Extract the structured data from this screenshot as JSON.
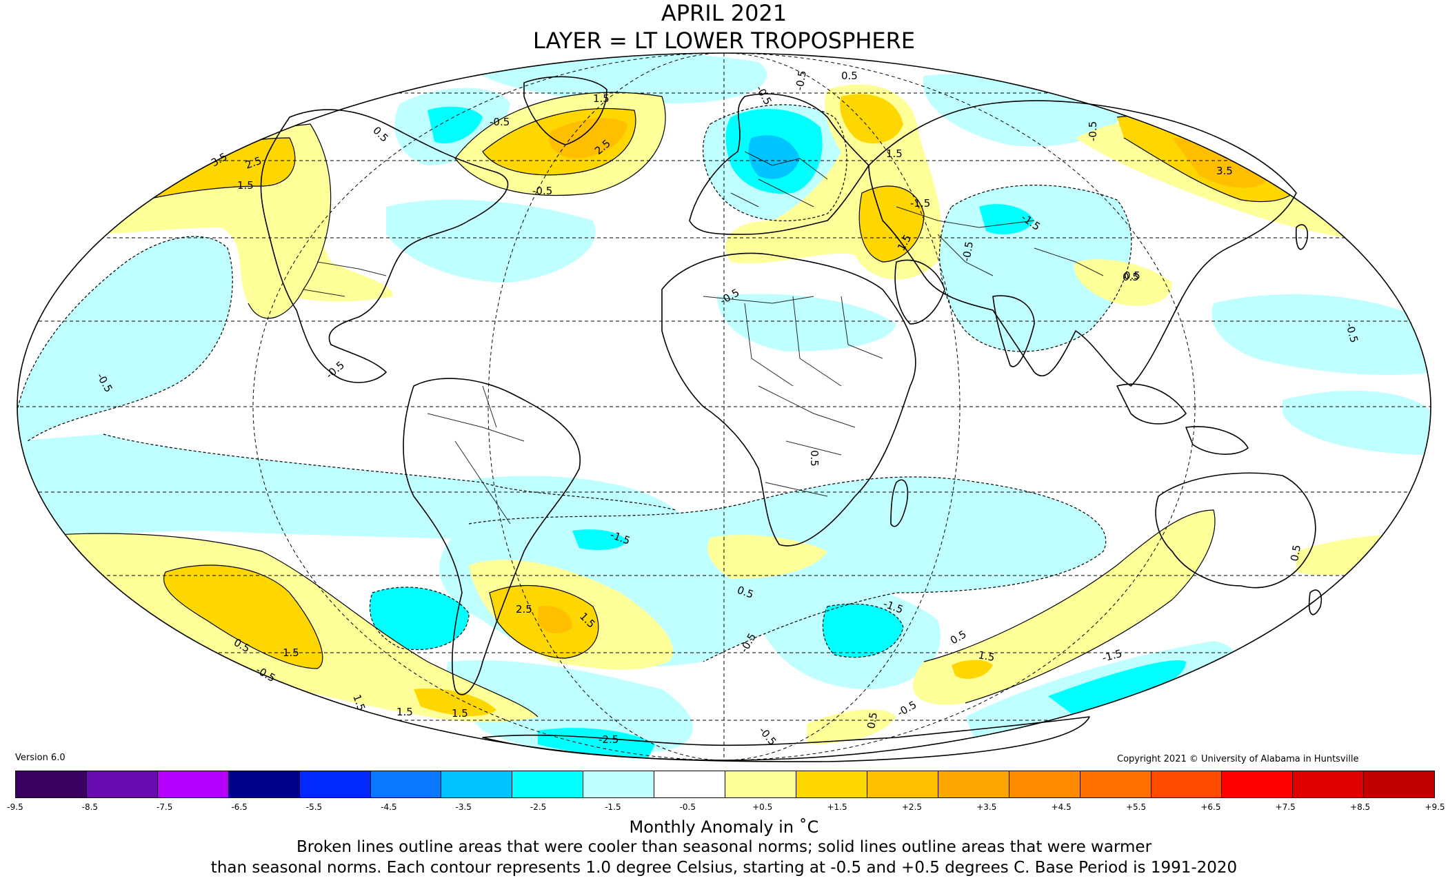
{
  "header": {
    "title_line1": "APRIL 2021",
    "title_line2": "LAYER = LT LOWER TROPOSPHERE"
  },
  "footer": {
    "version": "Version 6.0",
    "copyright": "Copyright 2021 © University of Alabama in Huntsville",
    "colorbar_label": "Monthly Anomaly in ˚C",
    "description_line1": "Broken lines outline areas that were cooler than seasonal norms; solid lines outline areas that were warmer",
    "description_line2": "than seasonal norms. Each contour represents 1.0 degree Celsius, starting at -0.5 and +0.5 degrees C. Base Period is 1991-2020"
  },
  "legend": {
    "ticks": [
      "-9.5",
      "-8.5",
      "-7.5",
      "-6.5",
      "-5.5",
      "-4.5",
      "-3.5",
      "-2.5",
      "-1.5",
      "-0.5",
      "+0.5",
      "+1.5",
      "+2.5",
      "+3.5",
      "+4.5",
      "+5.5",
      "+6.5",
      "+7.5",
      "+8.5",
      "+9.5"
    ],
    "colors": [
      "#3b0060",
      "#6a0bb0",
      "#b400ff",
      "#00008b",
      "#0028ff",
      "#0a78ff",
      "#00c4ff",
      "#00ffff",
      "#c0ffff",
      "#ffffff",
      "#ffff99",
      "#ffd700",
      "#ffbf00",
      "#ffa500",
      "#ff8c00",
      "#ff7000",
      "#ff4c00",
      "#ff0000",
      "#e00000",
      "#c00000"
    ]
  },
  "map": {
    "projection": "Mollweide",
    "colors": {
      "cool_light": "#c0ffff",
      "cool_mid": "#00ffff",
      "cool_dark": "#00c4ff",
      "warm_light": "#ffff99",
      "warm_mid": "#ffd700",
      "warm_dark": "#ffbf00"
    },
    "contour_labels": [
      "3.5",
      "2.5",
      "1.5",
      "0.5",
      "-0.5",
      "1.5",
      "2.5",
      "-0.5",
      "-0.5",
      "0.5",
      "1.5",
      "-0.5",
      "-1.5",
      "-1.5",
      "-0.5",
      "3.5",
      "-0.5",
      "0.5",
      "1.5",
      "-0.5",
      "-0.5",
      "-0.5",
      "-0.5",
      "-1.5",
      "1.5",
      "2.5",
      "1.5",
      "0.5",
      "0.5",
      "1.5",
      "1.5",
      "1.5",
      "-0.5",
      "0.5",
      "0.5",
      "-1.5",
      "-0.5",
      "0.5",
      "1.5",
      "-1.5",
      "-2.5",
      "-0.5",
      "0.5",
      "-0.5",
      "0.5"
    ]
  }
}
